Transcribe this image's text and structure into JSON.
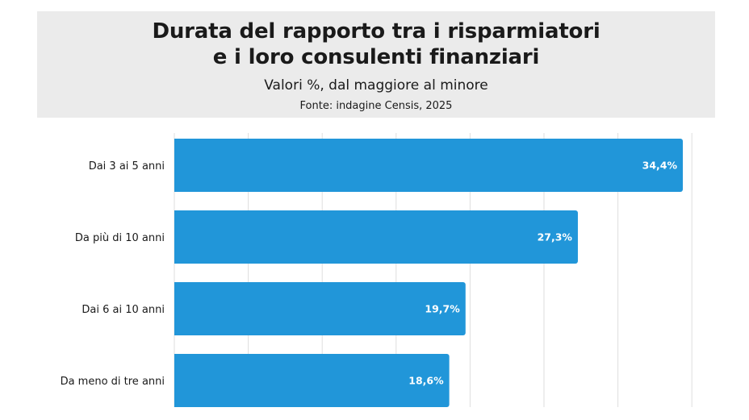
{
  "header": {
    "title_line1": "Durata del rapporto tra i risparmiatori",
    "title_line2": "e i loro consulenti finanziari",
    "subtitle": "Valori %, dal maggiore al minore",
    "source": "Fonte: indagine Censis, 2025"
  },
  "colors": {
    "bar": "#2196d9",
    "grid": "#dedede",
    "header_bg": "#ebebeb"
  },
  "chart_data": {
    "type": "bar",
    "orientation": "horizontal",
    "categories": [
      "Dai 3 ai 5 anni",
      "Da più di 10 anni",
      "Dai 6 ai 10 anni",
      "Da meno di tre anni"
    ],
    "values": [
      34.4,
      27.3,
      19.7,
      18.6
    ],
    "value_labels": [
      "34,4%",
      "27,3%",
      "19,7%",
      "18,6%"
    ],
    "title": "Durata del rapporto tra i risparmiatori e i loro consulenti finanziari",
    "subtitle": "Valori %, dal maggiore al minore",
    "xlabel": "",
    "ylabel": "",
    "xlim": [
      0,
      35
    ],
    "grid": true,
    "legend": "none"
  }
}
